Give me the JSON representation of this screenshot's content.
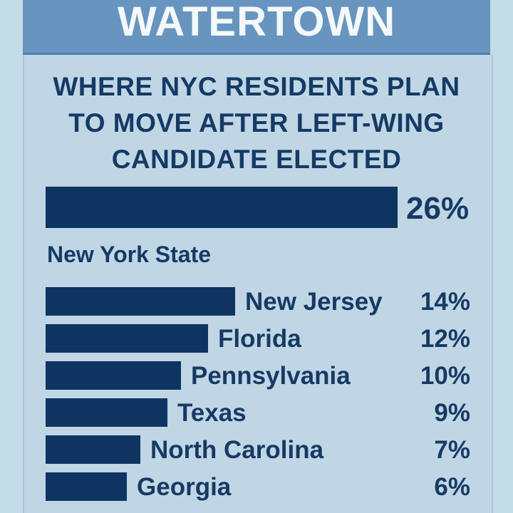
{
  "header": {
    "brand": "WATERTOWN"
  },
  "chart_data": {
    "type": "bar",
    "title_lines": [
      "WHERE NYC RESIDENTS PLAN",
      "TO MOVE AFTER LEFT-WING",
      "CANDIDATE ELECTED"
    ],
    "categories": [
      "New York State",
      "New Jersey",
      "Florida",
      "Pennsylvania",
      "Texas",
      "North Carolina",
      "Georgia"
    ],
    "values": [
      26,
      14,
      12,
      10,
      9,
      7,
      6
    ],
    "value_labels": [
      "26%",
      "14%",
      "12%",
      "10%",
      "9%",
      "7%",
      "6%"
    ],
    "orientation": "horizontal",
    "grid": false,
    "colors": {
      "bar": "#0e3462",
      "text": "#143a66",
      "background": "#c4dbe8",
      "header": "#6795bf"
    }
  }
}
